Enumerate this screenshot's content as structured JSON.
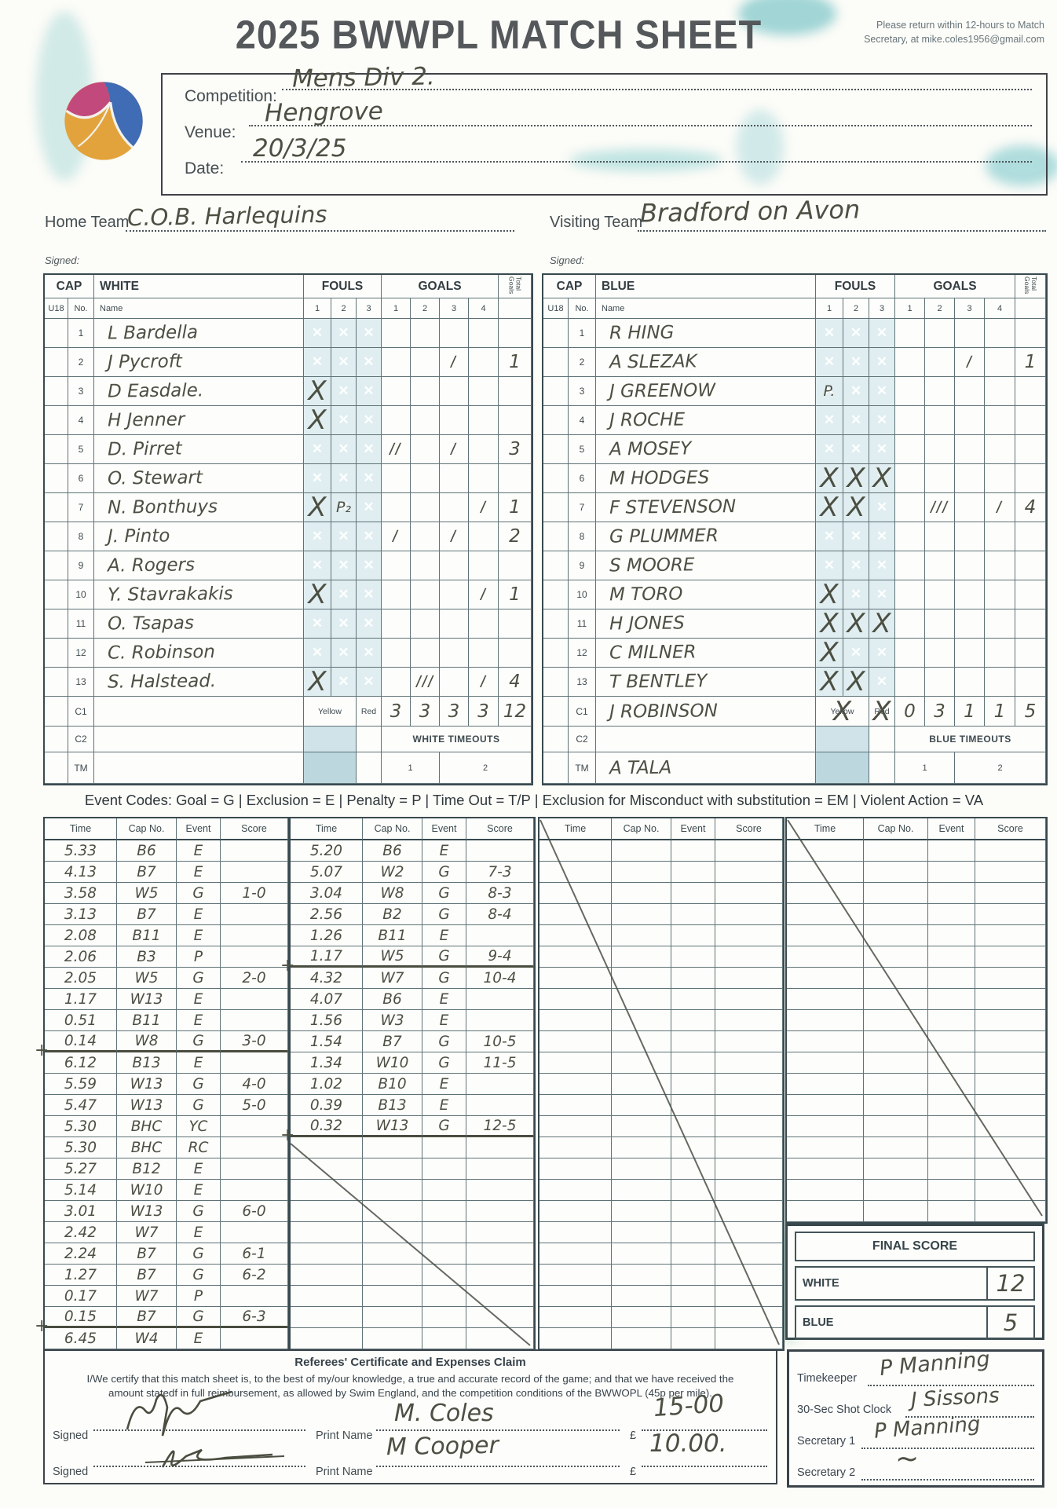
{
  "colors": {
    "ink": "#4c5043",
    "print": "#3e4a4f",
    "grid_line": "#5f7377",
    "foul_watermark_bg": "#e0eef1",
    "smudge_teal": "#8cc6ca",
    "ball_yellow": "#e3a33c",
    "ball_pink": "#c2497c",
    "ball_blue": "#3f6cb4"
  },
  "header": {
    "title": "2025 BWWPL MATCH SHEET",
    "return_note": "Please return within 12-hours to Match Secretary, at mike.coles1956@gmail.com",
    "competition_label": "Competition:",
    "competition_value": "Mens Div 2.",
    "venue_label": "Venue:",
    "venue_value": "Hengrove",
    "date_label": "Date:",
    "date_value": "20/3/25",
    "logo_icon": "water-polo-ball"
  },
  "teams": {
    "home_label": "Home Team",
    "home_value": "C.O.B. Harlequins",
    "visiting_label": "Visiting Team",
    "visiting_value": "Bradford on Avon",
    "signed_label": "Signed:"
  },
  "roster": {
    "headers": {
      "cap": "CAP",
      "u18": "U18",
      "no": "No.",
      "name": "Name",
      "fouls": "FOULS",
      "goals": "GOALS",
      "total_goals": "Total Goals",
      "foul_cols": [
        "1",
        "2",
        "3"
      ],
      "goal_cols": [
        "1",
        "2",
        "3",
        "4"
      ],
      "yellow": "Yellow",
      "red": "Red",
      "c1": "C1",
      "c2": "C2",
      "tm": "TM",
      "timeout_1": "1",
      "timeout_2": "2"
    },
    "white": {
      "team_label": "WHITE",
      "timeouts_label": "WHITE TIMEOUTS",
      "players": [
        {
          "no": "1",
          "name": "L Bardella",
          "fouls": [
            "",
            "",
            ""
          ],
          "goals": [
            "",
            "",
            "",
            ""
          ],
          "total": ""
        },
        {
          "no": "2",
          "name": "J Pycroft",
          "fouls": [
            "",
            "",
            ""
          ],
          "goals": [
            "",
            "",
            "l",
            ""
          ],
          "total": "1"
        },
        {
          "no": "3",
          "name": "D Easdale.",
          "fouls": [
            "X",
            "",
            ""
          ],
          "goals": [
            "",
            "",
            "",
            ""
          ],
          "total": ""
        },
        {
          "no": "4",
          "name": "H Jenner",
          "fouls": [
            "X",
            "",
            ""
          ],
          "goals": [
            "",
            "",
            "",
            ""
          ],
          "total": ""
        },
        {
          "no": "5",
          "name": "D. Pirret",
          "fouls": [
            "",
            "",
            ""
          ],
          "goals": [
            "ll",
            "",
            "l",
            ""
          ],
          "total": "3"
        },
        {
          "no": "6",
          "name": "O. Stewart",
          "fouls": [
            "",
            "",
            ""
          ],
          "goals": [
            "",
            "",
            "",
            ""
          ],
          "total": ""
        },
        {
          "no": "7",
          "name": "N. Bonthuys",
          "fouls": [
            "X",
            "P₂",
            ""
          ],
          "goals": [
            "",
            "",
            "",
            "l"
          ],
          "total": "1"
        },
        {
          "no": "8",
          "name": "J. Pinto",
          "fouls": [
            "",
            "",
            ""
          ],
          "goals": [
            "l",
            "",
            "l",
            ""
          ],
          "total": "2"
        },
        {
          "no": "9",
          "name": "A. Rogers",
          "fouls": [
            "",
            "",
            ""
          ],
          "goals": [
            "",
            "",
            "",
            ""
          ],
          "total": ""
        },
        {
          "no": "10",
          "name": "Y. Stavrakakis",
          "fouls": [
            "X",
            "",
            ""
          ],
          "goals": [
            "",
            "",
            "",
            "l"
          ],
          "total": "1"
        },
        {
          "no": "11",
          "name": "O. Tsapas",
          "fouls": [
            "",
            "",
            ""
          ],
          "goals": [
            "",
            "",
            "",
            ""
          ],
          "total": ""
        },
        {
          "no": "12",
          "name": "C. Robinson",
          "fouls": [
            "",
            "",
            ""
          ],
          "goals": [
            "",
            "",
            "",
            ""
          ],
          "total": ""
        },
        {
          "no": "13",
          "name": "S. Halstead.",
          "fouls": [
            "X",
            "",
            ""
          ],
          "goals": [
            "",
            "lll",
            "",
            "l"
          ],
          "total": "4"
        }
      ],
      "c1": {
        "name": "",
        "yellow_mark": "",
        "red_mark": "",
        "goals": [
          "3",
          "3",
          "3",
          "3"
        ],
        "total": "12"
      },
      "tm_name": ""
    },
    "blue": {
      "team_label": "BLUE",
      "timeouts_label": "BLUE TIMEOUTS",
      "players": [
        {
          "no": "1",
          "name": "R HING",
          "fouls": [
            "",
            "",
            ""
          ],
          "goals": [
            "",
            "",
            "",
            ""
          ],
          "total": ""
        },
        {
          "no": "2",
          "name": "A SLEZAK",
          "fouls": [
            "",
            "",
            ""
          ],
          "goals": [
            "",
            "",
            "l",
            ""
          ],
          "total": "1"
        },
        {
          "no": "3",
          "name": "J GREENOW",
          "fouls": [
            "P.",
            "",
            ""
          ],
          "goals": [
            "",
            "",
            "",
            ""
          ],
          "total": ""
        },
        {
          "no": "4",
          "name": "J ROCHE",
          "fouls": [
            "",
            "",
            ""
          ],
          "goals": [
            "",
            "",
            "",
            ""
          ],
          "total": ""
        },
        {
          "no": "5",
          "name": "A MOSEY",
          "fouls": [
            "",
            "",
            ""
          ],
          "goals": [
            "",
            "",
            "",
            ""
          ],
          "total": ""
        },
        {
          "no": "6",
          "name": "M HODGES",
          "fouls": [
            "X",
            "X",
            "X"
          ],
          "goals": [
            "",
            "",
            "",
            ""
          ],
          "total": ""
        },
        {
          "no": "7",
          "name": "F STEVENSON",
          "fouls": [
            "X",
            "X",
            ""
          ],
          "goals": [
            "",
            "lll",
            "",
            "l"
          ],
          "total": "4"
        },
        {
          "no": "8",
          "name": "G PLUMMER",
          "fouls": [
            "",
            "",
            ""
          ],
          "goals": [
            "",
            "",
            "",
            ""
          ],
          "total": ""
        },
        {
          "no": "9",
          "name": "S MOORE",
          "fouls": [
            "",
            "",
            ""
          ],
          "goals": [
            "",
            "",
            "",
            ""
          ],
          "total": ""
        },
        {
          "no": "10",
          "name": "M TORO",
          "fouls": [
            "X",
            "",
            ""
          ],
          "goals": [
            "",
            "",
            "",
            ""
          ],
          "total": ""
        },
        {
          "no": "11",
          "name": "H JONES",
          "fouls": [
            "X",
            "X",
            "X"
          ],
          "goals": [
            "",
            "",
            "",
            ""
          ],
          "total": ""
        },
        {
          "no": "12",
          "name": "C MILNER",
          "fouls": [
            "X",
            "",
            ""
          ],
          "goals": [
            "",
            "",
            "",
            ""
          ],
          "total": ""
        },
        {
          "no": "13",
          "name": "T BENTLEY",
          "fouls": [
            "X",
            "X",
            ""
          ],
          "goals": [
            "",
            "",
            "",
            ""
          ],
          "total": ""
        }
      ],
      "c1": {
        "name": "J ROBINSON",
        "yellow_mark": "X",
        "red_mark": "X",
        "goals": [
          "0",
          "3",
          "1",
          "1"
        ],
        "total": "5"
      },
      "tm_name": "A TALA"
    }
  },
  "event_codes": "Event Codes: Goal = G | Exclusion = E | Penalty = P | Time Out = T/P | Exclusion for Misconduct with substitution = EM | Violent Action = VA",
  "event_log": {
    "headers": [
      "Time",
      "Cap No.",
      "Event",
      "Score"
    ],
    "col1": [
      {
        "time": "5.33",
        "cap": "B6",
        "event": "E",
        "score": ""
      },
      {
        "time": "4.13",
        "cap": "B7",
        "event": "E",
        "score": ""
      },
      {
        "time": "3.58",
        "cap": "W5",
        "event": "G",
        "score": "1-0"
      },
      {
        "time": "3.13",
        "cap": "B7",
        "event": "E",
        "score": ""
      },
      {
        "time": "2.08",
        "cap": "B11",
        "event": "E",
        "score": ""
      },
      {
        "time": "2.06",
        "cap": "B3",
        "event": "P",
        "score": ""
      },
      {
        "time": "2.05",
        "cap": "W5",
        "event": "G",
        "score": "2-0"
      },
      {
        "time": "1.17",
        "cap": "W13",
        "event": "E",
        "score": ""
      },
      {
        "time": "0.51",
        "cap": "B11",
        "event": "E",
        "score": ""
      },
      {
        "time": "0.14",
        "cap": "W8",
        "event": "G",
        "score": "3-0",
        "qend": true
      },
      {
        "time": "6.12",
        "cap": "B13",
        "event": "E",
        "score": ""
      },
      {
        "time": "5.59",
        "cap": "W13",
        "event": "G",
        "score": "4-0"
      },
      {
        "time": "5.47",
        "cap": "W13",
        "event": "G",
        "score": "5-0"
      },
      {
        "time": "5.30",
        "cap": "BHC",
        "event": "YC",
        "score": ""
      },
      {
        "time": "5.30",
        "cap": "BHC",
        "event": "RC",
        "score": ""
      },
      {
        "time": "5.27",
        "cap": "B12",
        "event": "E",
        "score": ""
      },
      {
        "time": "5.14",
        "cap": "W10",
        "event": "E",
        "score": ""
      },
      {
        "time": "3.01",
        "cap": "W13",
        "event": "G",
        "score": "6-0"
      },
      {
        "time": "2.42",
        "cap": "W7",
        "event": "E",
        "score": ""
      },
      {
        "time": "2.24",
        "cap": "B7",
        "event": "G",
        "score": "6-1"
      },
      {
        "time": "1.27",
        "cap": "B7",
        "event": "G",
        "score": "6-2"
      },
      {
        "time": "0.17",
        "cap": "W7",
        "event": "P",
        "score": ""
      },
      {
        "time": "0.15",
        "cap": "B7",
        "event": "G",
        "score": "6-3",
        "qend": true
      },
      {
        "time": "6.45",
        "cap": "W4",
        "event": "E",
        "score": ""
      }
    ],
    "col2": [
      {
        "time": "5.20",
        "cap": "B6",
        "event": "E",
        "score": ""
      },
      {
        "time": "5.07",
        "cap": "W2",
        "event": "G",
        "score": "7-3"
      },
      {
        "time": "3.04",
        "cap": "W8",
        "event": "G",
        "score": "8-3"
      },
      {
        "time": "2.56",
        "cap": "B2",
        "event": "G",
        "score": "8-4"
      },
      {
        "time": "1.26",
        "cap": "B11",
        "event": "E",
        "score": ""
      },
      {
        "time": "1.17",
        "cap": "W5",
        "event": "G",
        "score": "9-4",
        "qend": true
      },
      {
        "time": "4.32",
        "cap": "W7",
        "event": "G",
        "score": "10-4"
      },
      {
        "time": "4.07",
        "cap": "B6",
        "event": "E",
        "score": ""
      },
      {
        "time": "1.56",
        "cap": "W3",
        "event": "E",
        "score": ""
      },
      {
        "time": "1.54",
        "cap": "B7",
        "event": "G",
        "score": "10-5"
      },
      {
        "time": "1.34",
        "cap": "W10",
        "event": "G",
        "score": "11-5"
      },
      {
        "time": "1.02",
        "cap": "B10",
        "event": "E",
        "score": ""
      },
      {
        "time": "0.39",
        "cap": "B13",
        "event": "E",
        "score": ""
      },
      {
        "time": "0.32",
        "cap": "W13",
        "event": "G",
        "score": "12-5",
        "qend": true
      }
    ],
    "col3": [],
    "col4": []
  },
  "final_score": {
    "title": "FINAL SCORE",
    "white_label": "WHITE",
    "white_value": "12",
    "blue_label": "BLUE",
    "blue_value": "5"
  },
  "referee_box": {
    "title": "Referees' Certificate and Expenses Claim",
    "body": "I/We certify that this match sheet is, to the best of my/our knowledge, a true and accurate record of the game; and that we have received the amount statedf in full reimbursement, as allowed by Swim England, and the competition conditions of the BWWOPL (45p per mile).",
    "signed_label": "Signed",
    "print_name_label": "Print Name",
    "currency": "£",
    "rows": [
      {
        "print_name": "M. Coles",
        "amount": "15-00"
      },
      {
        "print_name": "M Cooper",
        "amount": "10.00."
      }
    ]
  },
  "officials": {
    "timekeeper_label": "Timekeeper",
    "timekeeper_value": "P Manning",
    "shot_clock_label": "30-Sec Shot Clock",
    "shot_clock_value": "J Sissons",
    "secretary1_label": "Secretary 1",
    "secretary1_value": "P Manning",
    "secretary2_label": "Secretary 2",
    "secretary2_value": "~"
  }
}
